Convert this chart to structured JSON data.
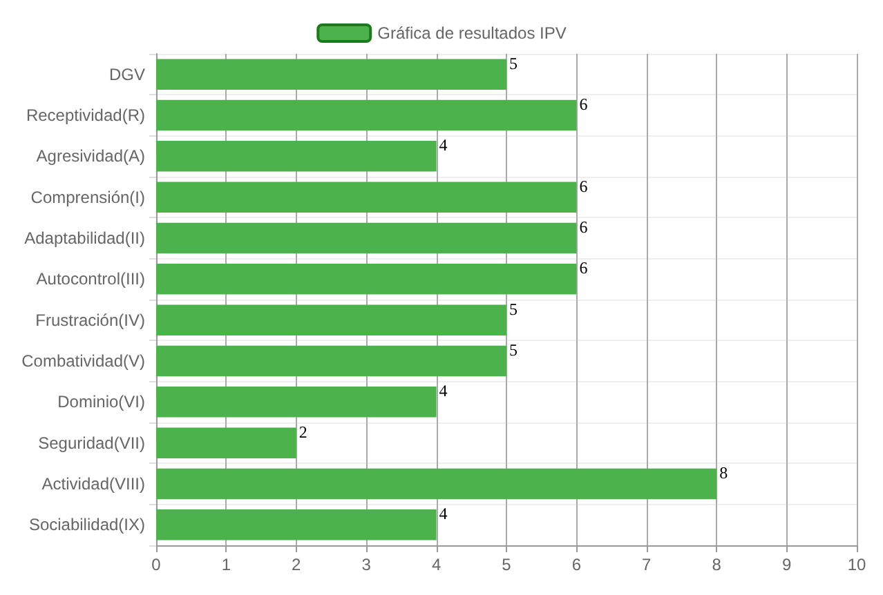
{
  "chart_data": {
    "type": "bar",
    "orientation": "horizontal",
    "categories": [
      "DGV",
      "Receptividad(R)",
      "Agresividad(A)",
      "Comprensión(I)",
      "Adaptabilidad(II)",
      "Autocontrol(III)",
      "Frustración(IV)",
      "Combatividad(V)",
      "Dominio(VI)",
      "Seguridad(VII)",
      "Actividad(VIII)",
      "Sociabilidad(IX)"
    ],
    "series": [
      {
        "name": "Gráfica de resultados IPV",
        "color": "#4cb34c",
        "values": [
          5,
          6,
          4,
          6,
          6,
          6,
          5,
          5,
          4,
          2,
          8,
          4
        ]
      }
    ],
    "xlim": [
      0,
      10
    ],
    "xticks": [
      0,
      1,
      2,
      3,
      4,
      5,
      6,
      7,
      8,
      9,
      10
    ],
    "grid": true,
    "legend": "top",
    "data_labels": true
  }
}
